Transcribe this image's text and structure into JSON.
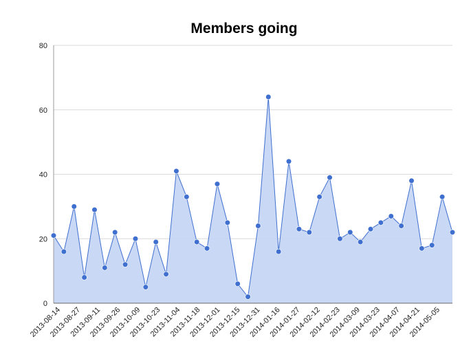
{
  "chart_data": {
    "type": "area",
    "title": "Members going",
    "xlabel": "",
    "ylabel": "",
    "ylim": [
      0,
      80
    ],
    "yticks": [
      0,
      20,
      40,
      60,
      80
    ],
    "grid": true,
    "legend": "none",
    "x_tick_labels": [
      "2013-08-14",
      "2013-08-27",
      "2013-09-11",
      "2013-09-26",
      "2013-10-09",
      "2013-10-23",
      "2013-11-04",
      "2013-11-18",
      "2013-12-01",
      "2013-12-15",
      "2013-12-31",
      "2014-01-16",
      "2014-01-27",
      "2014-02-12",
      "2014-02-23",
      "2014-03-09",
      "2014-03-23",
      "2014-04-07",
      "2014-04-21",
      "2014-05-05"
    ],
    "values": [
      21,
      16,
      30,
      8,
      29,
      11,
      22,
      12,
      20,
      5,
      19,
      9,
      41,
      33,
      19,
      17,
      37,
      25,
      6,
      2,
      24,
      64,
      16,
      44,
      23,
      22,
      33,
      39,
      20,
      22,
      19,
      23,
      25,
      27,
      24,
      38,
      17,
      18,
      33,
      22
    ],
    "colors": {
      "line": "#3f6fcf",
      "fill": "#c6d6f4",
      "point": "#3f6fcf",
      "grid": "#d9d9d9",
      "axis": "#999999"
    }
  }
}
